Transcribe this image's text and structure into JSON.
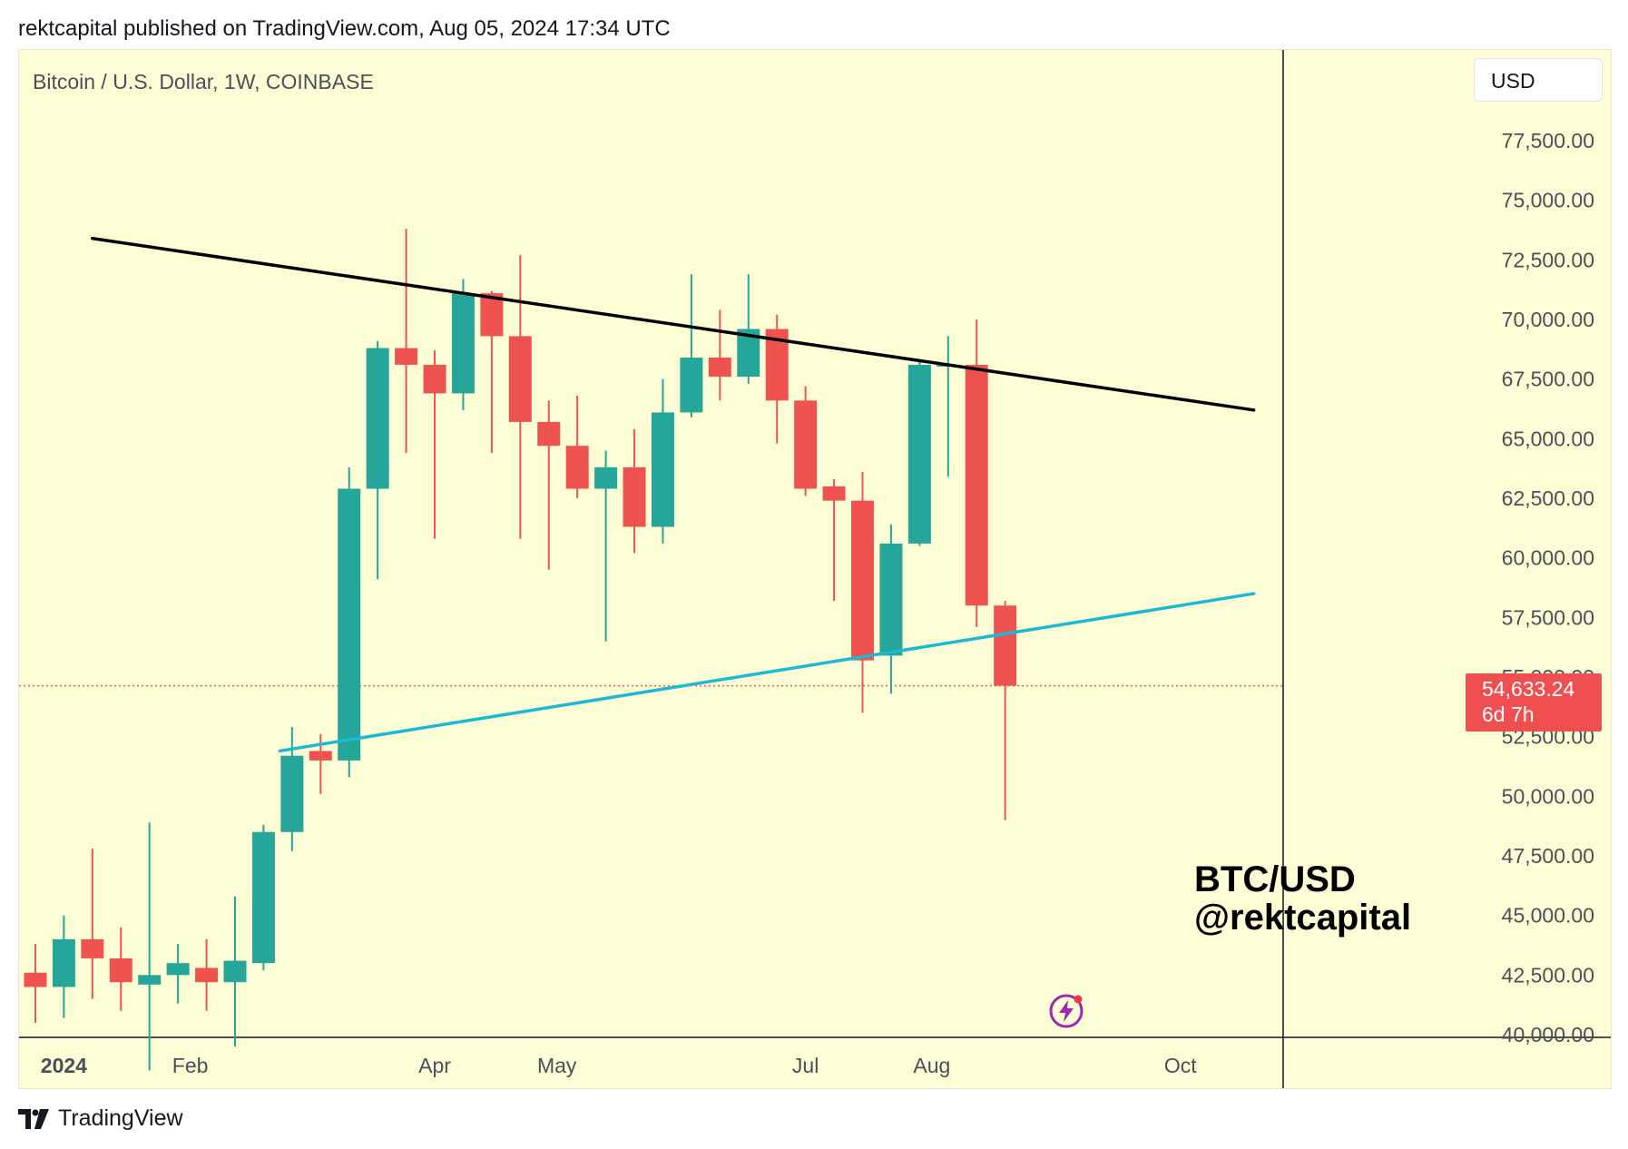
{
  "header": {
    "text": "rektcapital published on TradingView.com, Aug 05, 2024 17:34 UTC"
  },
  "chart_header": {
    "symbol": "Bitcoin / U.S. Dollar, 1W, COINBASE"
  },
  "currency_button": {
    "label": "USD"
  },
  "price_badge": {
    "price": "54,633.24",
    "countdown": "6d 7h"
  },
  "watermark": {
    "line1": "BTC/USD",
    "line2": "@rektcapital"
  },
  "footer": {
    "brand": "TradingView",
    "logo_icon": "tradingview-logo-icon"
  },
  "colors": {
    "up": "#26a69a",
    "down": "#ef5350",
    "resistance": "#000000",
    "support": "#1cb8d4",
    "price_line": "#ef5350",
    "background": "#fefed6"
  },
  "chart_data": {
    "type": "candlestick",
    "title": "",
    "interval": "1W",
    "xlabel": "",
    "ylabel": "",
    "ylim": [
      40000,
      79000
    ],
    "y_ticks": [
      "77,500.00",
      "75,000.00",
      "72,500.00",
      "70,000.00",
      "67,500.00",
      "65,000.00",
      "62,500.00",
      "60,000.00",
      "57,500.00",
      "55,000.00",
      "52,500.00",
      "50,000.00",
      "47,500.00",
      "45,000.00",
      "42,500.00",
      "40,000.00"
    ],
    "x_ticks": [
      {
        "label": "2024",
        "date": "2024-01-01",
        "bold": true
      },
      {
        "label": "Feb",
        "date": "2024-02-01"
      },
      {
        "label": "Apr",
        "date": "2024-04-01"
      },
      {
        "label": "May",
        "date": "2024-05-01"
      },
      {
        "label": "Jul",
        "date": "2024-07-01"
      },
      {
        "label": "Aug",
        "date": "2024-08-01"
      },
      {
        "label": "Oct",
        "date": "2024-10-01"
      }
    ],
    "x_range": [
      "2023-12-21",
      "2024-10-26"
    ],
    "candles": [
      {
        "date": "2023-12-25",
        "open": 42600,
        "high": 43800,
        "low": 40500,
        "close": 42000
      },
      {
        "date": "2024-01-01",
        "open": 42000,
        "high": 45000,
        "low": 40700,
        "close": 44000
      },
      {
        "date": "2024-01-08",
        "open": 44000,
        "high": 47800,
        "low": 41500,
        "close": 43200
      },
      {
        "date": "2024-01-15",
        "open": 43200,
        "high": 44500,
        "low": 41000,
        "close": 42200
      },
      {
        "date": "2024-01-22",
        "open": 42100,
        "high": 48900,
        "low": 38500,
        "close": 42500
      },
      {
        "date": "2024-01-29",
        "open": 42500,
        "high": 43800,
        "low": 41300,
        "close": 43000
      },
      {
        "date": "2024-02-05",
        "open": 42800,
        "high": 44000,
        "low": 41000,
        "close": 42200
      },
      {
        "date": "2024-02-12",
        "open": 42200,
        "high": 45800,
        "low": 39500,
        "close": 43100
      },
      {
        "date": "2024-02-19",
        "open": 43000,
        "high": 48800,
        "low": 42700,
        "close": 48500
      },
      {
        "date": "2024-02-26",
        "open": 48500,
        "high": 52900,
        "low": 47700,
        "close": 51700
      },
      {
        "date": "2024-03-04",
        "open": 51900,
        "high": 52600,
        "low": 50100,
        "close": 51500
      },
      {
        "date": "2024-03-11",
        "open": 51500,
        "high": 63800,
        "low": 50800,
        "close": 62900
      },
      {
        "date": "2024-03-18",
        "open": 62900,
        "high": 69100,
        "low": 59100,
        "close": 68800
      },
      {
        "date": "2024-03-25",
        "open": 68800,
        "high": 73800,
        "low": 64400,
        "close": 68100
      },
      {
        "date": "2024-04-01",
        "open": 68100,
        "high": 68700,
        "low": 60800,
        "close": 66900
      },
      {
        "date": "2024-04-08",
        "open": 66900,
        "high": 71700,
        "low": 66200,
        "close": 71100
      },
      {
        "date": "2024-04-15",
        "open": 71100,
        "high": 71200,
        "low": 64400,
        "close": 69300
      },
      {
        "date": "2024-04-22",
        "open": 69300,
        "high": 72700,
        "low": 60800,
        "close": 65700
      },
      {
        "date": "2024-04-29",
        "open": 65700,
        "high": 66600,
        "low": 59500,
        "close": 64700
      },
      {
        "date": "2024-05-06",
        "open": 64700,
        "high": 66800,
        "low": 62500,
        "close": 62900
      },
      {
        "date": "2024-05-13",
        "open": 62900,
        "high": 64500,
        "low": 56500,
        "close": 63800
      },
      {
        "date": "2024-05-20",
        "open": 63800,
        "high": 65400,
        "low": 60200,
        "close": 61300
      },
      {
        "date": "2024-05-27",
        "open": 61300,
        "high": 67500,
        "low": 60600,
        "close": 66100
      },
      {
        "date": "2024-06-03",
        "open": 66100,
        "high": 71900,
        "low": 65900,
        "close": 68400
      },
      {
        "date": "2024-06-10",
        "open": 68400,
        "high": 70400,
        "low": 66600,
        "close": 67600
      },
      {
        "date": "2024-06-17",
        "open": 67600,
        "high": 71900,
        "low": 67300,
        "close": 69600
      },
      {
        "date": "2024-06-24",
        "open": 69600,
        "high": 70200,
        "low": 64800,
        "close": 66600
      },
      {
        "date": "2024-07-01",
        "open": 66600,
        "high": 67200,
        "low": 62600,
        "close": 62900
      },
      {
        "date": "2024-07-08",
        "open": 63000,
        "high": 63300,
        "low": 58200,
        "close": 62400
      },
      {
        "date": "2024-07-15",
        "open": 62400,
        "high": 63600,
        "low": 53500,
        "close": 55700
      },
      {
        "date": "2024-07-22",
        "open": 55900,
        "high": 61400,
        "low": 54300,
        "close": 60600
      },
      {
        "date": "2024-07-29",
        "open": 60600,
        "high": 68300,
        "low": 60500,
        "close": 68100
      },
      {
        "date": "2024-08-05",
        "open": 68100,
        "high": 69300,
        "low": 63400,
        "close": 68100
      },
      {
        "date": "2024-08-12",
        "open": 68100,
        "high": 70000,
        "low": 57100,
        "close": 58000
      },
      {
        "date": "2024-08-19",
        "open": 58000,
        "high": 58200,
        "low": 49000,
        "close": 54633.24
      }
    ],
    "trendlines": [
      {
        "name": "resistance",
        "from": {
          "date": "2024-01-08",
          "price": 73400
        },
        "to": {
          "date": "2024-10-19",
          "price": 66200
        }
      },
      {
        "name": "support",
        "from": {
          "date": "2024-02-23",
          "price": 51900
        },
        "to": {
          "date": "2024-10-19",
          "price": 58500
        }
      }
    ],
    "last_price": 54633.24
  }
}
